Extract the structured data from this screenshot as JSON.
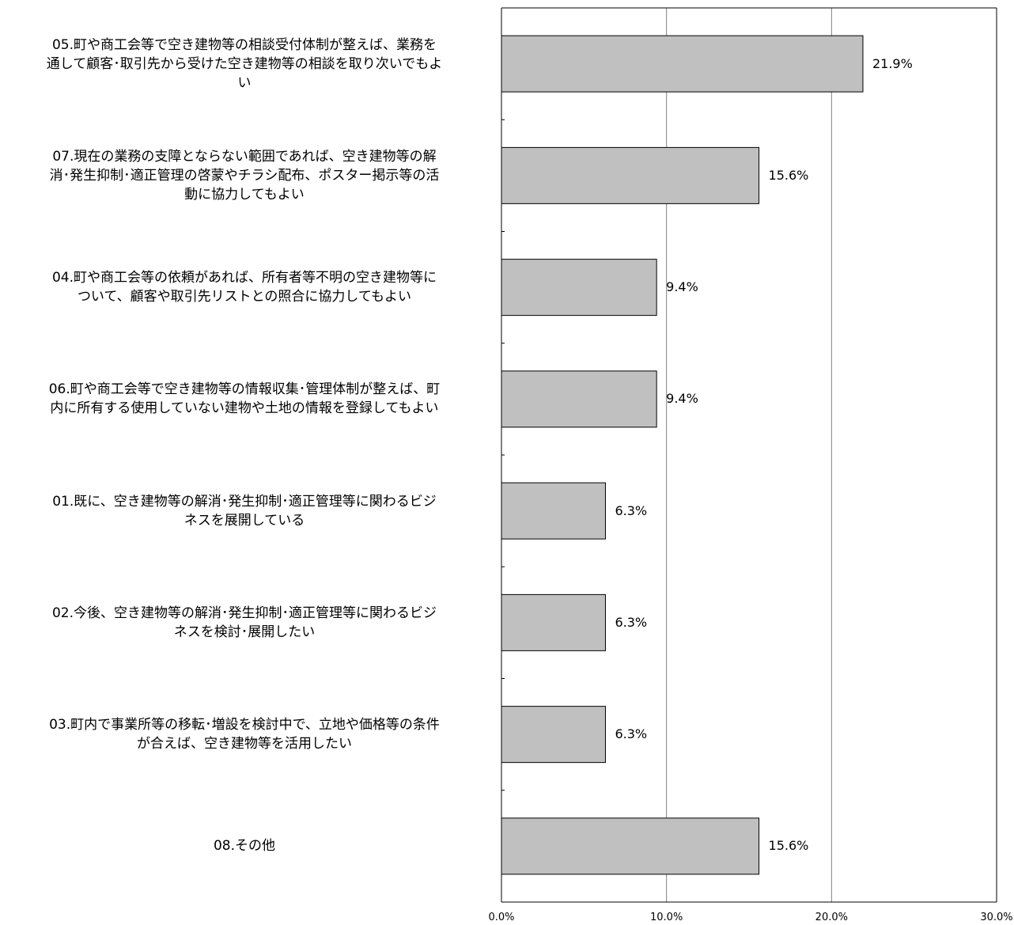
{
  "chart_data": {
    "type": "bar",
    "orientation": "horizontal",
    "categories": [
      [
        "05.町や商工会等で空き建物等の相談受付体制が整えば、業務を",
        "通して顧客･取引先から受けた空き建物等の相談を取り次いでもよ",
        "い"
      ],
      [
        "07.現在の業務の支障とならない範囲であれば、空き建物等の解",
        "消･発生抑制･適正管理の啓蒙やチラシ配布、ポスター掲示等の活",
        "動に協力してもよい"
      ],
      [
        "04.町や商工会等の依頼があれば、所有者等不明の空き建物等に",
        "ついて、顧客や取引先リストとの照合に協力してもよい"
      ],
      [
        "06.町や商工会等で空き建物等の情報収集･管理体制が整えば、町",
        "内に所有する使用していない建物や土地の情報を登録してもよい"
      ],
      [
        "01.既に、空き建物等の解消･発生抑制･適正管理等に関わるビジ",
        "ネスを展開している"
      ],
      [
        "02.今後、空き建物等の解消･発生抑制･適正管理等に関わるビジ",
        "ネスを検討･展開したい"
      ],
      [
        "03.町内で事業所等の移転･増設を検討中で、立地や価格等の条件",
        "が合えば、空き建物等を活用したい"
      ],
      [
        "08.その他"
      ]
    ],
    "values": [
      21.9,
      15.6,
      9.4,
      9.4,
      6.3,
      6.3,
      6.3,
      15.6
    ],
    "value_labels": [
      "21.9%",
      "15.6%",
      "9.4%",
      "9.4%",
      "6.3%",
      "6.3%",
      "6.3%",
      "15.6%"
    ],
    "xlim": [
      0,
      30
    ],
    "x_ticks": [
      0,
      10,
      20,
      30
    ],
    "x_tick_labels": [
      "0.0%",
      "10.0%",
      "20.0%",
      "30.0%"
    ],
    "grid": true,
    "legend": "none",
    "colors": {
      "bar_fill": "#c0c0c0",
      "bar_stroke": "#000000",
      "grid": "#808080",
      "axis": "#000000"
    }
  }
}
